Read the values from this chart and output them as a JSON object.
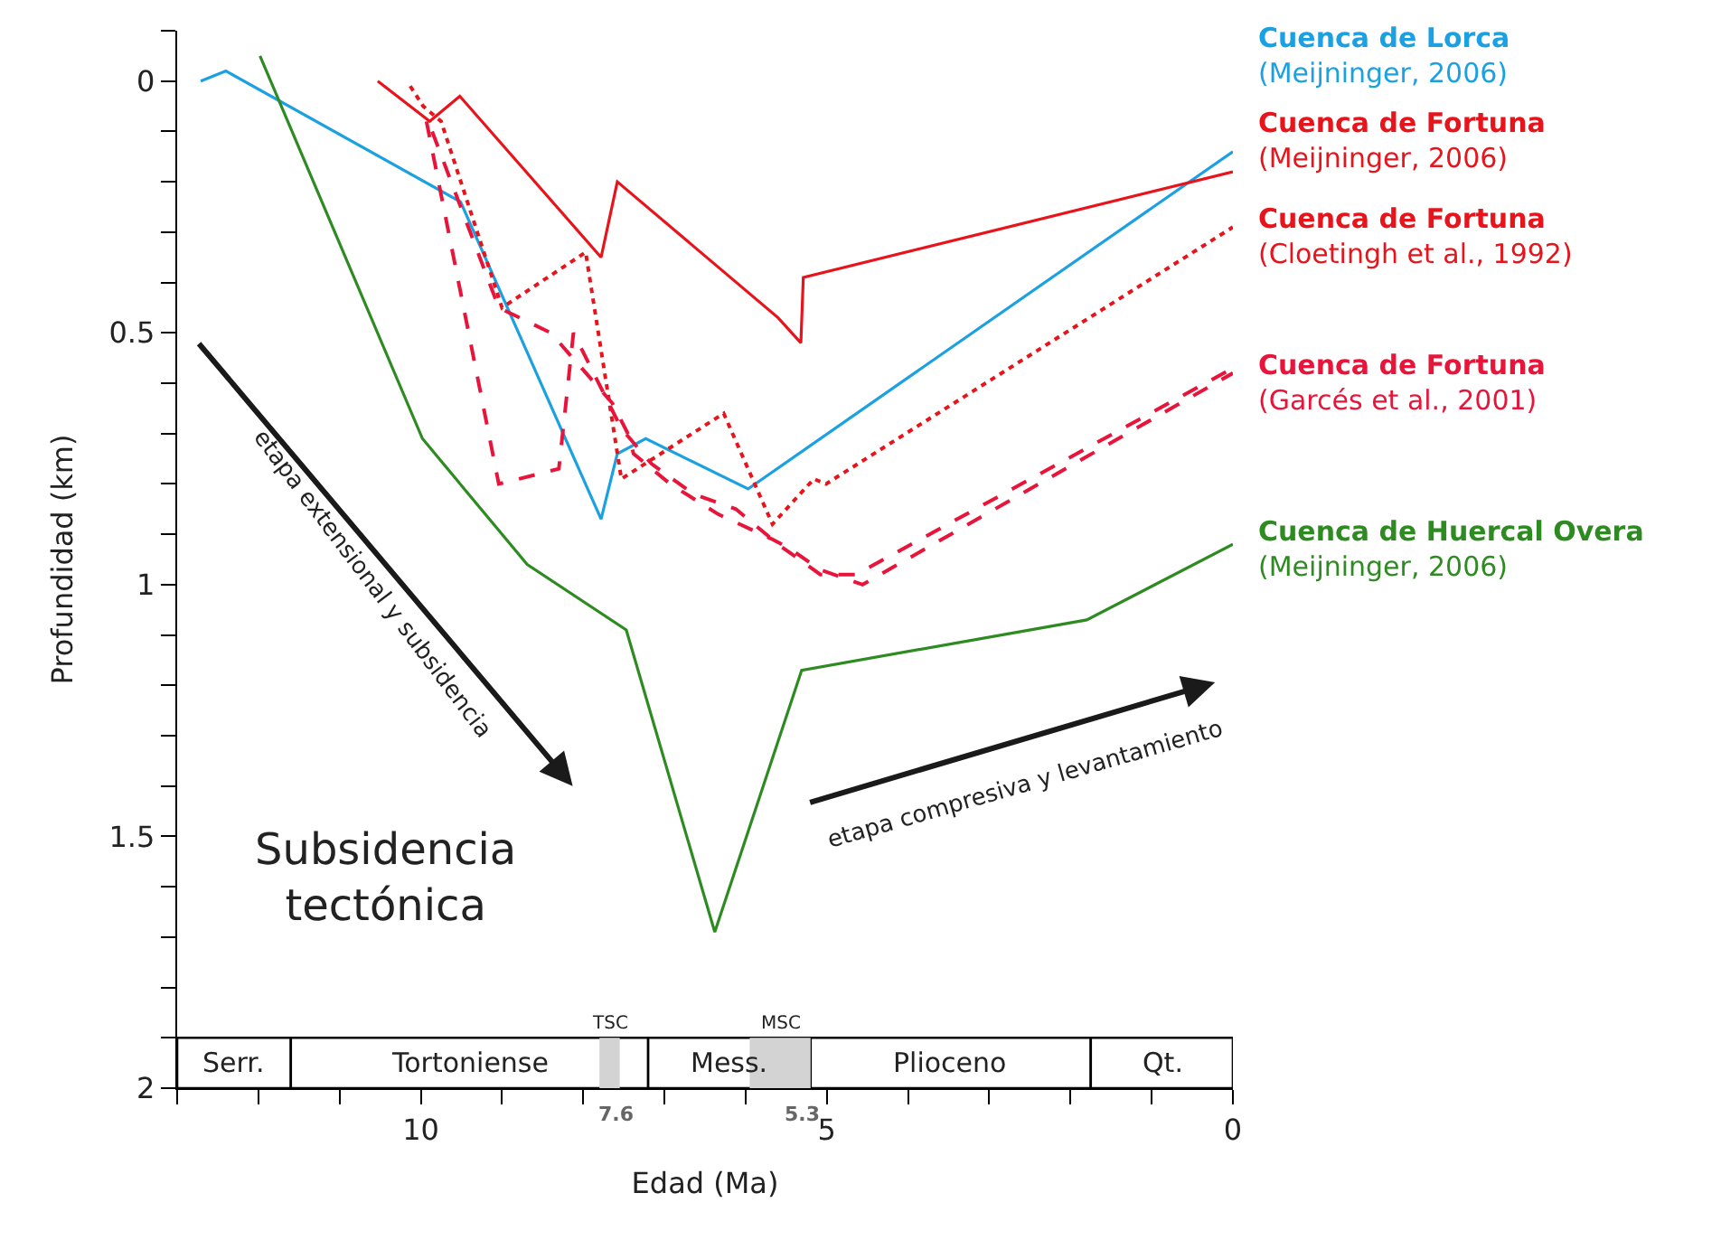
{
  "chart_data": {
    "type": "line",
    "xlabel": "Edad (Ma)",
    "ylabel": "Profundidad (km)",
    "xlim": [
      13,
      0
    ],
    "ylim": [
      2.0,
      -0.1
    ],
    "xticks": [
      {
        "value": 13,
        "label": null
      },
      {
        "value": 12,
        "label": null
      },
      {
        "value": 11,
        "label": null
      },
      10,
      {
        "value": 9,
        "label": null
      },
      {
        "value": 8,
        "label": null
      },
      {
        "value": 7,
        "label": null
      },
      {
        "value": 6,
        "label": null
      },
      5,
      {
        "value": 4,
        "label": null
      },
      {
        "value": 3,
        "label": null
      },
      {
        "value": 2,
        "label": null
      },
      {
        "value": 1,
        "label": null
      },
      0
    ],
    "yticks": [
      {
        "value": -0.1,
        "label": null
      },
      0,
      {
        "value": 0.1,
        "label": null
      },
      {
        "value": 0.2,
        "label": null
      },
      {
        "value": 0.3,
        "label": null
      },
      {
        "value": 0.4,
        "label": null
      },
      0.5,
      {
        "value": 0.6,
        "label": null
      },
      {
        "value": 0.7,
        "label": null
      },
      {
        "value": 0.8,
        "label": null
      },
      {
        "value": 0.9,
        "label": null
      },
      1,
      {
        "value": 1.1,
        "label": null
      },
      {
        "value": 1.2,
        "label": null
      },
      {
        "value": 1.3,
        "label": null
      },
      {
        "value": 1.4,
        "label": null
      },
      1.5,
      {
        "value": 1.6,
        "label": null
      },
      {
        "value": 1.7,
        "label": null
      },
      {
        "value": 1.8,
        "label": null
      },
      {
        "value": 1.9,
        "label": null
      },
      2
    ],
    "grid": false,
    "legend": "right",
    "marker": "none",
    "series": [
      {
        "name": "Cuenca de Lorca\n(Meijninger, 2006)",
        "color": "#1ba1e2",
        "line_style": "solid",
        "x": [
          12.71,
          12.4,
          9.51,
          7.78,
          7.58,
          7.23,
          5.97,
          0
        ],
        "values": [
          0.0,
          -0.02,
          0.24,
          0.87,
          0.74,
          0.71,
          0.81,
          0.14
        ]
      },
      {
        "name": "Cuenca de Fortuna\n(Meijninger, 2006)",
        "color": "#e8141c",
        "line_style": "solid",
        "x": [
          10.53,
          9.89,
          9.52,
          7.78,
          7.58,
          5.6,
          5.32,
          5.29,
          0
        ],
        "values": [
          0.0,
          0.08,
          0.03,
          0.35,
          0.2,
          0.47,
          0.52,
          0.39,
          0.18
        ]
      },
      {
        "name": "Cuenca de Fortuna\n(Cloetingh et al., 1992)",
        "color": "#e8141c",
        "line_style": "dotted",
        "x": [
          10.13,
          9.97,
          9.75,
          9.0,
          7.97,
          7.53,
          6.27,
          5.67,
          5.16,
          5.01,
          0
        ],
        "values": [
          0.01,
          0.05,
          0.08,
          0.45,
          0.34,
          0.79,
          0.66,
          0.88,
          0.79,
          0.8,
          0.29
        ]
      },
      {
        "name": "Cuenca de Fortuna\n(Garcés et al., 2001)",
        "color": "#e8143a",
        "line_style": "dashed",
        "x": [
          9.93,
          9.04,
          8.3,
          8.12,
          7.53,
          7.16,
          6.64,
          6.12,
          5.6,
          5.08,
          4.64,
          0
        ],
        "values": [
          0.08,
          0.8,
          0.77,
          0.5,
          0.69,
          0.76,
          0.82,
          0.85,
          0.92,
          0.98,
          0.98,
          0.57
        ]
      },
      {
        "color": "#e8143a",
        "line_style": "dashed",
        "x": [
          9.86,
          9.04,
          8.4,
          7.64,
          7.45,
          7.38,
          6.93,
          6.34,
          5.67,
          5.44,
          5.09,
          4.56,
          0
        ],
        "values": [
          0.1,
          0.45,
          0.5,
          0.64,
          0.7,
          0.74,
          0.8,
          0.86,
          0.91,
          0.93,
          0.97,
          1.0,
          0.58
        ]
      },
      {
        "name": "Cuenca de Huercal Overa\n(Meijninger, 2006)",
        "color": "#2e8b22",
        "line_style": "solid",
        "x": [
          11.98,
          9.98,
          8.69,
          7.47,
          6.38,
          5.31,
          1.8,
          0
        ],
        "values": [
          -0.05,
          0.71,
          0.96,
          1.09,
          1.69,
          1.17,
          1.07,
          0.92
        ]
      }
    ],
    "bands": [
      {
        "axis": "x",
        "from": 13,
        "to": 11.6,
        "label": "Serr.",
        "color": "#ffffff"
      },
      {
        "axis": "x",
        "from": 11.6,
        "to": 7.2,
        "label": "Tortoniense",
        "color": "#ffffff"
      },
      {
        "axis": "x",
        "from": 7.2,
        "to": 5.2,
        "label": "Mess.",
        "color": "#ffffff"
      },
      {
        "axis": "x",
        "from": 5.2,
        "to": 1.75,
        "label": "Plioceno",
        "color": "#ffffff"
      },
      {
        "axis": "x",
        "from": 1.75,
        "to": 0,
        "label": "Qt.",
        "color": "#ffffff"
      },
      {
        "axis": "x",
        "from": 7.8,
        "to": 7.55,
        "label": "TSC",
        "color": "#d3d3d3"
      },
      {
        "axis": "x",
        "from": 5.95,
        "to": 5.2,
        "label": "MSC",
        "color": "#d3d3d3"
      }
    ],
    "annotations": [
      "Subsidencia\ntectónica",
      "etapa extensional y subsidencia",
      "etapa compresiva y levantamiento",
      {
        "text": "7.6",
        "x": 7.6,
        "y": 2.0
      },
      {
        "text": "5.3",
        "x": 5.3,
        "y": 2.0
      }
    ]
  }
}
